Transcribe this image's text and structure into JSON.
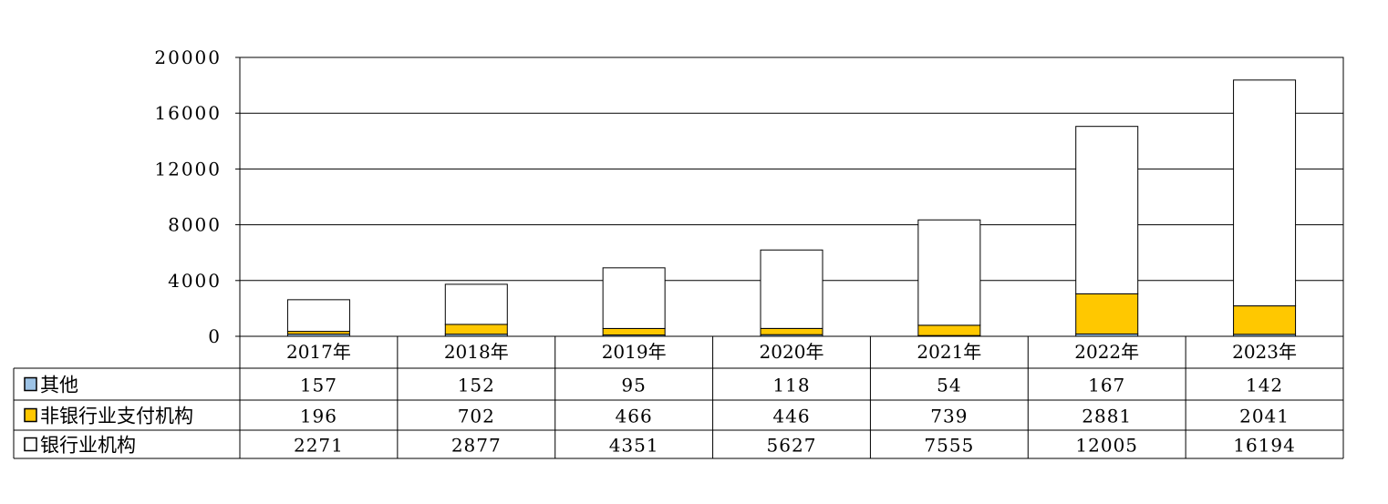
{
  "chart_data": {
    "type": "bar",
    "stacked": true,
    "categories": [
      "2017年",
      "2018年",
      "2019年",
      "2020年",
      "2021年",
      "2022年",
      "2023年"
    ],
    "series": [
      {
        "name": "其他",
        "color": "#9dc3e6",
        "values": [
          157,
          152,
          95,
          118,
          54,
          167,
          142
        ]
      },
      {
        "name": "非银行业支付机构",
        "color": "#ffc800",
        "values": [
          196,
          702,
          466,
          446,
          739,
          2881,
          2041
        ]
      },
      {
        "name": "银行业机构",
        "color": "#ffffff",
        "values": [
          2271,
          2877,
          4351,
          5627,
          7555,
          12005,
          16194
        ]
      }
    ],
    "ylim": [
      0,
      20000
    ],
    "yticks": [
      "0",
      "4000",
      "8000",
      "12000",
      "16000",
      "20000"
    ],
    "grid": true,
    "legend": "data-table"
  }
}
